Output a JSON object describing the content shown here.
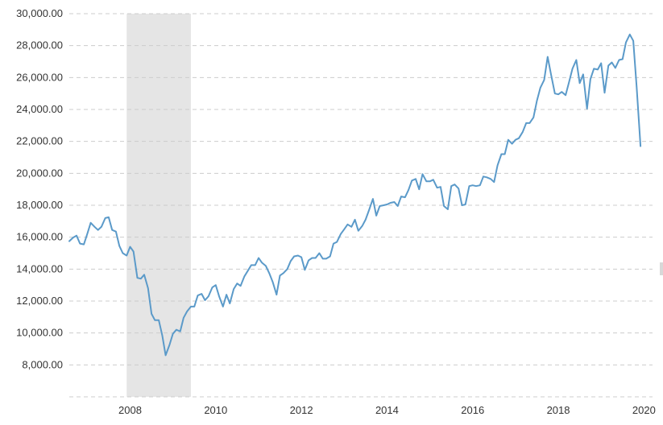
{
  "chart_data": {
    "type": "line",
    "title": "",
    "xlabel": "",
    "ylabel": "",
    "xlim": [
      2006.58,
      2020.2
    ],
    "ylim": [
      6000,
      30000
    ],
    "grid": true,
    "y_ticks": [
      8000,
      10000,
      12000,
      14000,
      16000,
      18000,
      20000,
      22000,
      24000,
      26000,
      28000,
      30000
    ],
    "y_tick_labels": [
      "8,000.00",
      "10,000.00",
      "12,000.00",
      "14,000.00",
      "16,000.00",
      "18,000.00",
      "20,000.00",
      "22,000.00",
      "24,000.00",
      "26,000.00",
      "28,000.00",
      "30,000.00"
    ],
    "x_ticks": [
      2008,
      2010,
      2012,
      2014,
      2016,
      2018,
      2020
    ],
    "x_tick_labels": [
      "2008",
      "2010",
      "2012",
      "2014",
      "2016",
      "2018",
      "2020"
    ],
    "shaded_regions": [
      {
        "from": 2007.92,
        "to": 2009.42,
        "color": "#e5e5e5"
      }
    ],
    "series": [
      {
        "color": "#5b9ac9",
        "points": [
          [
            2006.58,
            15750
          ],
          [
            2006.67,
            15980
          ],
          [
            2006.75,
            16100
          ],
          [
            2006.83,
            15600
          ],
          [
            2006.92,
            15550
          ],
          [
            2007.0,
            16200
          ],
          [
            2007.08,
            16900
          ],
          [
            2007.17,
            16650
          ],
          [
            2007.25,
            16450
          ],
          [
            2007.33,
            16650
          ],
          [
            2007.42,
            17200
          ],
          [
            2007.5,
            17250
          ],
          [
            2007.58,
            16450
          ],
          [
            2007.67,
            16350
          ],
          [
            2007.75,
            15450
          ],
          [
            2007.83,
            15000
          ],
          [
            2007.92,
            14850
          ],
          [
            2008.0,
            15400
          ],
          [
            2008.08,
            15100
          ],
          [
            2008.17,
            13450
          ],
          [
            2008.25,
            13400
          ],
          [
            2008.33,
            13650
          ],
          [
            2008.42,
            12800
          ],
          [
            2008.5,
            11200
          ],
          [
            2008.58,
            10800
          ],
          [
            2008.67,
            10800
          ],
          [
            2008.75,
            9850
          ],
          [
            2008.83,
            8600
          ],
          [
            2008.92,
            9250
          ],
          [
            2009.0,
            9950
          ],
          [
            2009.08,
            10200
          ],
          [
            2009.17,
            10100
          ],
          [
            2009.25,
            10950
          ],
          [
            2009.33,
            11350
          ],
          [
            2009.42,
            11650
          ],
          [
            2009.5,
            11650
          ],
          [
            2009.58,
            12350
          ],
          [
            2009.67,
            12450
          ],
          [
            2009.75,
            12050
          ],
          [
            2009.83,
            12300
          ],
          [
            2009.92,
            12850
          ],
          [
            2010.0,
            13000
          ],
          [
            2010.08,
            12300
          ],
          [
            2010.17,
            11650
          ],
          [
            2010.25,
            12400
          ],
          [
            2010.33,
            11850
          ],
          [
            2010.42,
            12750
          ],
          [
            2010.5,
            13100
          ],
          [
            2010.58,
            12950
          ],
          [
            2010.67,
            13550
          ],
          [
            2010.75,
            13900
          ],
          [
            2010.83,
            14250
          ],
          [
            2010.92,
            14250
          ],
          [
            2011.0,
            14700
          ],
          [
            2011.08,
            14400
          ],
          [
            2011.17,
            14200
          ],
          [
            2011.25,
            13750
          ],
          [
            2011.33,
            13200
          ],
          [
            2011.42,
            12400
          ],
          [
            2011.5,
            13600
          ],
          [
            2011.58,
            13750
          ],
          [
            2011.67,
            14000
          ],
          [
            2011.75,
            14500
          ],
          [
            2011.83,
            14800
          ],
          [
            2011.92,
            14850
          ],
          [
            2012.0,
            14750
          ],
          [
            2012.08,
            13950
          ],
          [
            2012.17,
            14550
          ],
          [
            2012.25,
            14700
          ],
          [
            2012.33,
            14700
          ],
          [
            2012.42,
            15000
          ],
          [
            2012.5,
            14650
          ],
          [
            2012.58,
            14650
          ],
          [
            2012.67,
            14800
          ],
          [
            2012.75,
            15600
          ],
          [
            2012.83,
            15700
          ],
          [
            2012.92,
            16200
          ],
          [
            2013.0,
            16500
          ],
          [
            2013.08,
            16800
          ],
          [
            2013.17,
            16650
          ],
          [
            2013.25,
            17100
          ],
          [
            2013.33,
            16400
          ],
          [
            2013.42,
            16700
          ],
          [
            2013.5,
            17100
          ],
          [
            2013.58,
            17700
          ],
          [
            2013.67,
            18400
          ],
          [
            2013.75,
            17350
          ],
          [
            2013.83,
            17950
          ],
          [
            2013.92,
            18000
          ],
          [
            2014.0,
            18050
          ],
          [
            2014.08,
            18150
          ],
          [
            2014.17,
            18200
          ],
          [
            2014.25,
            17950
          ],
          [
            2014.33,
            18550
          ],
          [
            2014.42,
            18500
          ],
          [
            2014.5,
            18950
          ],
          [
            2014.58,
            19550
          ],
          [
            2014.67,
            19650
          ],
          [
            2014.75,
            19000
          ],
          [
            2014.83,
            19950
          ],
          [
            2014.92,
            19500
          ],
          [
            2015.0,
            19500
          ],
          [
            2015.08,
            19600
          ],
          [
            2015.17,
            19100
          ],
          [
            2015.25,
            19150
          ],
          [
            2015.33,
            17950
          ],
          [
            2015.42,
            17750
          ],
          [
            2015.5,
            19200
          ],
          [
            2015.58,
            19300
          ],
          [
            2015.67,
            19050
          ],
          [
            2015.75,
            18000
          ],
          [
            2015.83,
            18050
          ],
          [
            2015.92,
            19200
          ],
          [
            2016.0,
            19250
          ],
          [
            2016.08,
            19200
          ],
          [
            2016.17,
            19250
          ],
          [
            2016.25,
            19800
          ],
          [
            2016.33,
            19750
          ],
          [
            2016.42,
            19650
          ],
          [
            2016.5,
            19450
          ],
          [
            2016.58,
            20500
          ],
          [
            2016.67,
            21200
          ],
          [
            2016.75,
            21200
          ],
          [
            2016.83,
            22100
          ],
          [
            2016.92,
            21850
          ],
          [
            2017.0,
            22100
          ],
          [
            2017.08,
            22200
          ],
          [
            2017.17,
            22600
          ],
          [
            2017.25,
            23150
          ],
          [
            2017.33,
            23150
          ],
          [
            2017.42,
            23500
          ],
          [
            2017.5,
            24550
          ],
          [
            2017.58,
            25350
          ],
          [
            2017.67,
            25850
          ],
          [
            2017.75,
            27300
          ],
          [
            2017.83,
            26200
          ],
          [
            2017.92,
            25000
          ],
          [
            2018.0,
            24950
          ],
          [
            2018.08,
            25100
          ],
          [
            2018.17,
            24900
          ],
          [
            2018.25,
            25700
          ],
          [
            2018.33,
            26550
          ],
          [
            2018.42,
            27100
          ],
          [
            2018.5,
            25650
          ],
          [
            2018.58,
            26200
          ],
          [
            2018.67,
            24050
          ],
          [
            2018.75,
            25900
          ],
          [
            2018.83,
            26550
          ],
          [
            2018.92,
            26500
          ],
          [
            2019.0,
            26900
          ],
          [
            2019.08,
            25050
          ],
          [
            2019.17,
            26750
          ],
          [
            2019.25,
            26950
          ],
          [
            2019.33,
            26600
          ],
          [
            2019.42,
            27100
          ],
          [
            2019.5,
            27150
          ],
          [
            2019.58,
            28200
          ],
          [
            2019.67,
            28700
          ],
          [
            2019.75,
            28300
          ],
          [
            2019.83,
            25400
          ],
          [
            2019.92,
            21700
          ]
        ]
      }
    ]
  }
}
